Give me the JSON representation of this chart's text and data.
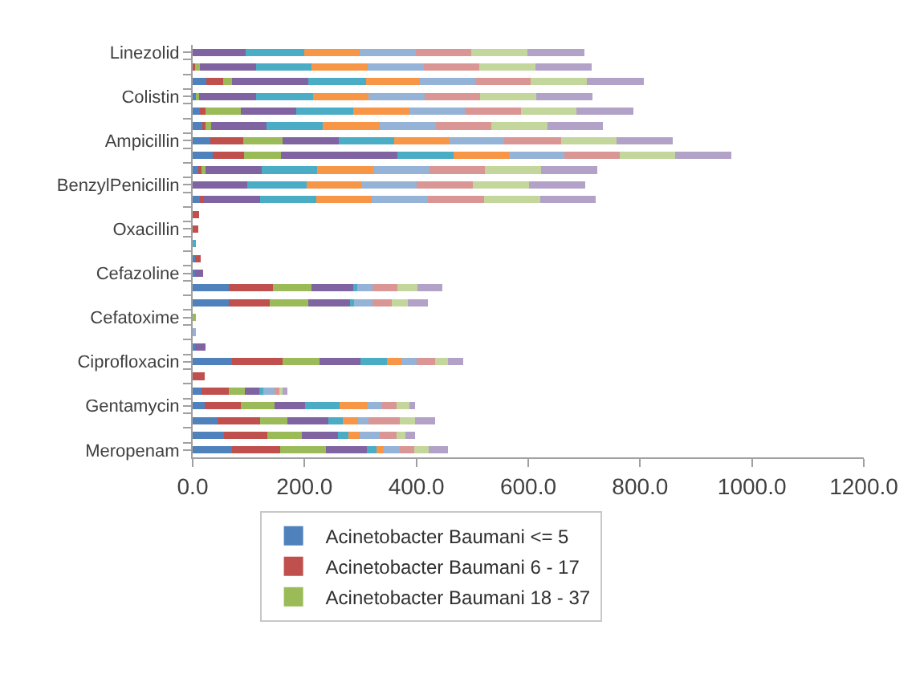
{
  "chart_data": {
    "type": "bar",
    "orientation": "horizontal",
    "stacked": true,
    "categories": [
      "Linezolid",
      null,
      null,
      "Colistin",
      null,
      null,
      "Ampicillin",
      null,
      null,
      "BenzylPenicillin",
      null,
      null,
      "Oxacillin",
      null,
      null,
      "Cefazoline",
      null,
      null,
      "Cefatoxime",
      null,
      null,
      "Ciprofloxacin",
      null,
      null,
      "Gentamycin",
      null,
      null,
      "Meropenam"
    ],
    "series": [
      {
        "name": "Acinetobacter Baumani <= 5",
        "color": "#4f81bd",
        "values": [
          null,
          null,
          24,
          6,
          13,
          18,
          31,
          36,
          10,
          null,
          13,
          null,
          null,
          null,
          5,
          5,
          64,
          64,
          null,
          null,
          5,
          71,
          null,
          16,
          21,
          44,
          56,
          71
        ]
      },
      {
        "name": "Acinetobacter Baumani 6 - 17",
        "color": "#c0504d",
        "values": [
          null,
          5,
          30,
          null,
          10,
          5,
          60,
          56,
          6,
          null,
          7,
          11,
          10,
          null,
          10,
          null,
          79,
          74,
          null,
          null,
          null,
          90,
          21,
          48,
          65,
          77,
          78,
          85
        ]
      },
      {
        "name": "Acinetobacter Baumani 18 - 37",
        "color": "#9bbb59",
        "values": [
          null,
          8,
          17,
          5,
          63,
          10,
          70,
          66,
          7,
          null,
          null,
          null,
          null,
          null,
          null,
          null,
          69,
          68,
          5,
          null,
          null,
          66,
          null,
          29,
          61,
          48,
          61,
          82
        ]
      },
      {
        "color": "#8064a2",
        "values": [
          95,
          100,
          136,
          102,
          99,
          99,
          100,
          208,
          100,
          98,
          100,
          null,
          null,
          null,
          null,
          13,
          77,
          77,
          null,
          null,
          18,
          73,
          null,
          26,
          54,
          74,
          65,
          74
        ]
      },
      {
        "color": "#4bacc6",
        "values": [
          104,
          100,
          103,
          103,
          102,
          101,
          99,
          100,
          100,
          106,
          101,
          null,
          null,
          5,
          null,
          null,
          5,
          5,
          null,
          null,
          null,
          47,
          null,
          7,
          61,
          26,
          18,
          17
        ]
      },
      {
        "color": "#f79646",
        "values": [
          100,
          100,
          96,
          99,
          101,
          102,
          100,
          99,
          100,
          98,
          99,
          null,
          null,
          null,
          null,
          null,
          null,
          null,
          null,
          null,
          null,
          26,
          null,
          null,
          49,
          26,
          20,
          13
        ]
      },
      {
        "color": "#95b3d7",
        "values": [
          100,
          100,
          99,
          100,
          99,
          100,
          97,
          99,
          100,
          99,
          100,
          null,
          null,
          null,
          null,
          null,
          28,
          33,
          null,
          5,
          null,
          28,
          null,
          20,
          28,
          20,
          36,
          28
        ]
      },
      {
        "color": "#d99694",
        "values": [
          99,
          100,
          100,
          99,
          100,
          99,
          102,
          100,
          100,
          100,
          101,
          null,
          null,
          null,
          null,
          null,
          44,
          35,
          null,
          null,
          null,
          33,
          null,
          10,
          26,
          56,
          31,
          26
        ]
      },
      {
        "color": "#c3d69b",
        "values": [
          100,
          100,
          100,
          100,
          99,
          100,
          99,
          99,
          100,
          100,
          100,
          null,
          null,
          null,
          null,
          null,
          36,
          29,
          null,
          null,
          null,
          23,
          null,
          5,
          23,
          26,
          15,
          26
        ]
      },
      {
        "color": "#b3a2c7",
        "values": [
          102,
          101,
          102,
          101,
          102,
          100,
          100,
          100,
          101,
          101,
          99,
          null,
          null,
          null,
          null,
          null,
          44,
          36,
          null,
          null,
          null,
          26,
          null,
          8,
          9,
          36,
          17,
          34
        ]
      }
    ],
    "xlim": [
      0,
      1200
    ],
    "xticks": [
      {
        "value": 0,
        "label": "0.0"
      },
      {
        "value": 200,
        "label": "200.0"
      },
      {
        "value": 400,
        "label": "400.0"
      },
      {
        "value": 600,
        "label": "600.0"
      },
      {
        "value": 800,
        "label": "800.0"
      },
      {
        "value": 1000,
        "label": "1000.0"
      },
      {
        "value": 1200,
        "label": "1200.0"
      }
    ],
    "legend": "bottom"
  }
}
